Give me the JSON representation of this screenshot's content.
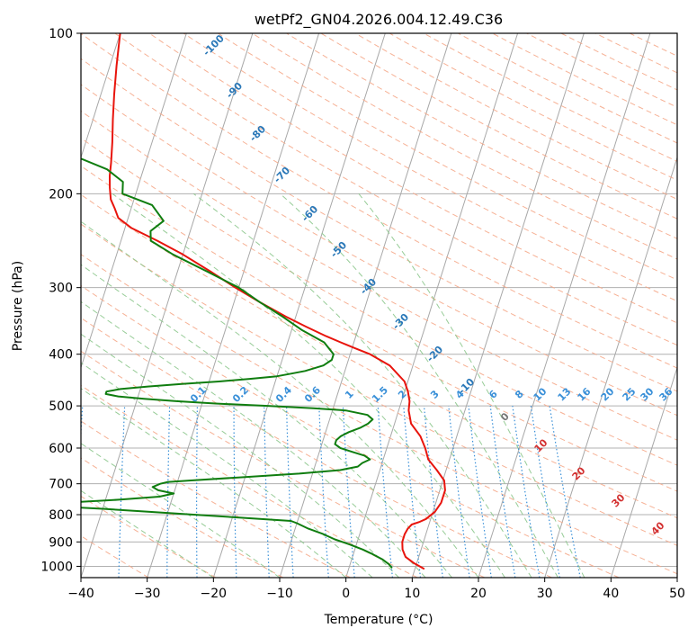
{
  "chart_data": {
    "type": "line",
    "title": "wetPf2_GN04.2026.004.12.49.C36",
    "xlabel": "Temperature (°C)",
    "ylabel": "Pressure (hPa)",
    "xlim": [
      -40,
      50
    ],
    "ylim": [
      1050,
      100
    ],
    "y_scale": "log",
    "x_ticks": [
      -40,
      -30,
      -20,
      -10,
      0,
      10,
      20,
      30,
      40,
      50
    ],
    "x_tick_labels": [
      "−40",
      "−30",
      "−20",
      "−10",
      "0",
      "10",
      "20",
      "30",
      "40",
      "50"
    ],
    "y_ticks": [
      100,
      200,
      300,
      400,
      500,
      600,
      700,
      800,
      900,
      1000
    ],
    "y_tick_labels": [
      "100",
      "200",
      "300",
      "400",
      "500",
      "600",
      "700",
      "800",
      "900",
      "1000"
    ],
    "grid": true,
    "colors": {
      "temperature": "#e8140c",
      "dewpoint": "#0f7d0f",
      "skew_isotherm": "#a8a8a8",
      "dry_adiabat": "#f5a98a",
      "moist_adiabat": "#8cc68c",
      "mixing_ratio": "#3a90d8",
      "annotation_blue": "#2a78b8",
      "annotation_red": "#d33030",
      "annotation_gray": "#777777"
    },
    "series": [
      {
        "key": "temperature",
        "p": [
          1010,
          985,
          960,
          930,
          900,
          870,
          850,
          835,
          825,
          815,
          790,
          760,
          720,
          690,
          660,
          630,
          600,
          570,
          540,
          510,
          490,
          470,
          450,
          420,
          400,
          390,
          380,
          370,
          355,
          340,
          320,
          300,
          280,
          260,
          245,
          232,
          222,
          213,
          205,
          195,
          185,
          175,
          160,
          145,
          130,
          115,
          100
        ],
        "t": [
          11.3,
          9.5,
          8.0,
          7.2,
          6.8,
          6.8,
          7.0,
          7.4,
          8.5,
          9.3,
          10.3,
          10.8,
          10.8,
          10.2,
          8.6,
          6.8,
          5.8,
          4.5,
          2.5,
          1.5,
          1.2,
          0.5,
          -0.5,
          -3.5,
          -7.0,
          -9.5,
          -12.0,
          -14.5,
          -18.0,
          -21.5,
          -26.0,
          -30.5,
          -35.0,
          -40.0,
          -44.5,
          -49.0,
          -51.5,
          -52.5,
          -53.5,
          -54.2,
          -54.8,
          -55.2,
          -56.0,
          -57.0,
          -58.0,
          -59.0,
          -60.0
        ]
      },
      {
        "key": "dewpoint",
        "p": [
          1005,
          990,
          970,
          950,
          930,
          910,
          890,
          870,
          850,
          830,
          822,
          810,
          800,
          790,
          780,
          772,
          768,
          765,
          760,
          750,
          740,
          730,
          720,
          710,
          700,
          695,
          690,
          680,
          670,
          660,
          650,
          640,
          630,
          620,
          610,
          600,
          590,
          580,
          570,
          560,
          550,
          540,
          530,
          520,
          510,
          505,
          500,
          495,
          490,
          485,
          480,
          475,
          470,
          465,
          460,
          455,
          450,
          445,
          440,
          435,
          430,
          420,
          410,
          400,
          380,
          360,
          340,
          320,
          300,
          280,
          260,
          245,
          235,
          225,
          210,
          200,
          190,
          180,
          170,
          160,
          150,
          140,
          125,
          115,
          100
        ],
        "t": [
          6.4,
          5.8,
          4.6,
          3.0,
          1.2,
          -1.0,
          -3.5,
          -5.5,
          -8.0,
          -10.0,
          -11.0,
          -19.0,
          -26.0,
          -33.0,
          -40.0,
          -47.0,
          -49.0,
          -49.5,
          -46.0,
          -38.0,
          -32.0,
          -30.0,
          -32.5,
          -33.5,
          -32.5,
          -31.5,
          -28.0,
          -20.0,
          -12.0,
          -6.0,
          -3.5,
          -3.0,
          -2.0,
          -3.0,
          -5.0,
          -7.0,
          -8.0,
          -8.0,
          -7.5,
          -6.5,
          -5.0,
          -4.0,
          -3.5,
          -4.5,
          -8.0,
          -13.0,
          -20.0,
          -28.0,
          -34.0,
          -39.0,
          -43.0,
          -45.0,
          -45.0,
          -43.0,
          -39.0,
          -34.0,
          -28.5,
          -24.0,
          -20.0,
          -18.0,
          -16.0,
          -13.5,
          -12.5,
          -12.5,
          -14.5,
          -18.5,
          -22.0,
          -26.0,
          -30.0,
          -35.5,
          -41.5,
          -45.5,
          -46.0,
          -44.5,
          -47.0,
          -52.0,
          -52.5,
          -55.5,
          -61.0,
          -64.0,
          -64.0,
          -64.0,
          -66.0,
          -70.0,
          -74.0
        ]
      }
    ],
    "mixing_ratio_labels": [
      "0.1",
      "0.2",
      "0.4",
      "0.6",
      "1",
      "1.5",
      "2",
      "3",
      "4",
      "6",
      "8",
      "10",
      "13",
      "16",
      "20",
      "25",
      "30",
      "36"
    ],
    "blue_annotations": [
      "-100",
      "-90",
      "-80",
      "-70",
      "-60",
      "-50",
      "-40",
      "-30",
      "-20",
      "-10"
    ],
    "red_annotations": [
      "10",
      "20",
      "30",
      "40"
    ],
    "gray_annotation": "0"
  }
}
